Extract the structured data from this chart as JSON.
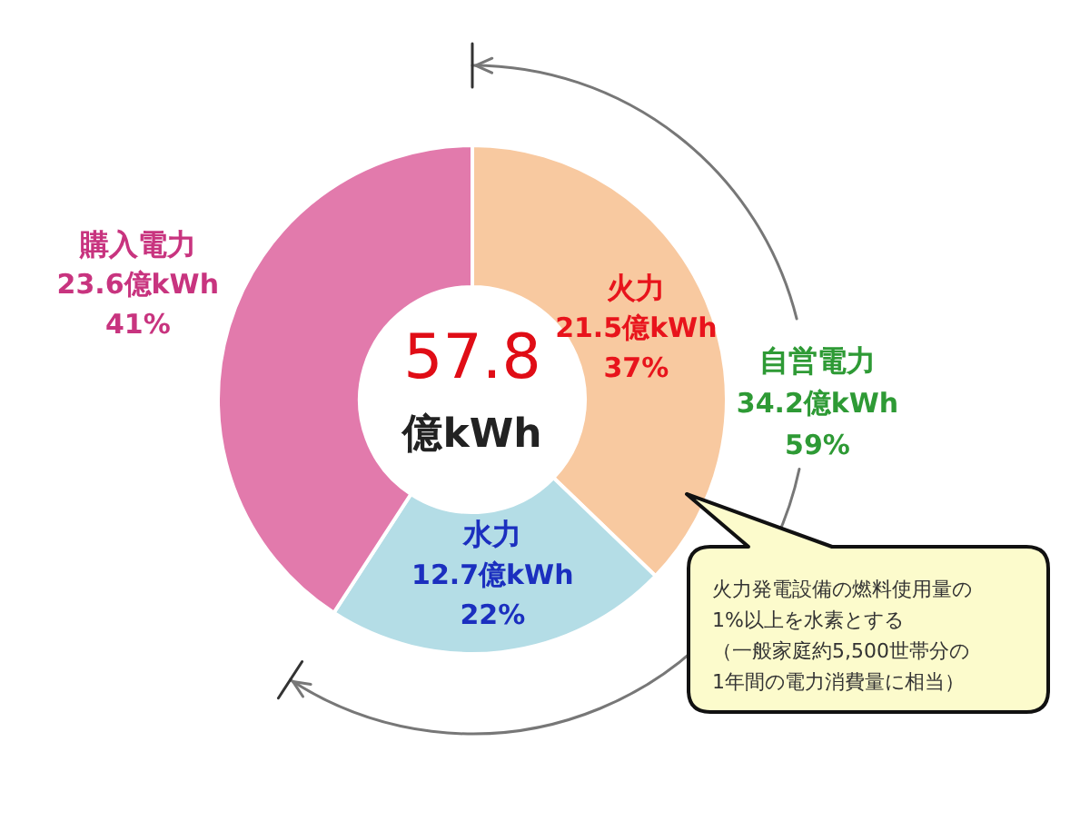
{
  "chart_data": {
    "type": "donut",
    "categories": [
      "火力",
      "水力",
      "購入電力"
    ],
    "values": [
      21.5,
      12.7,
      23.6
    ],
    "colors": [
      "#f8c9a0",
      "#b4dde6",
      "#e27aac"
    ],
    "value_labels": [
      "21.5億kWh\n37%",
      "12.7億kWh\n22%",
      "23.6億kWh\n41%"
    ],
    "annotations": [
      "57.8\n億kWh",
      "自営電力\n34.2億kWh\n59%",
      "火力発電設備の燃料使用量の1%以上を水素とする（一般家庭約5,500世帯分の1年間の電力消費量に相当）"
    ]
  }
}
